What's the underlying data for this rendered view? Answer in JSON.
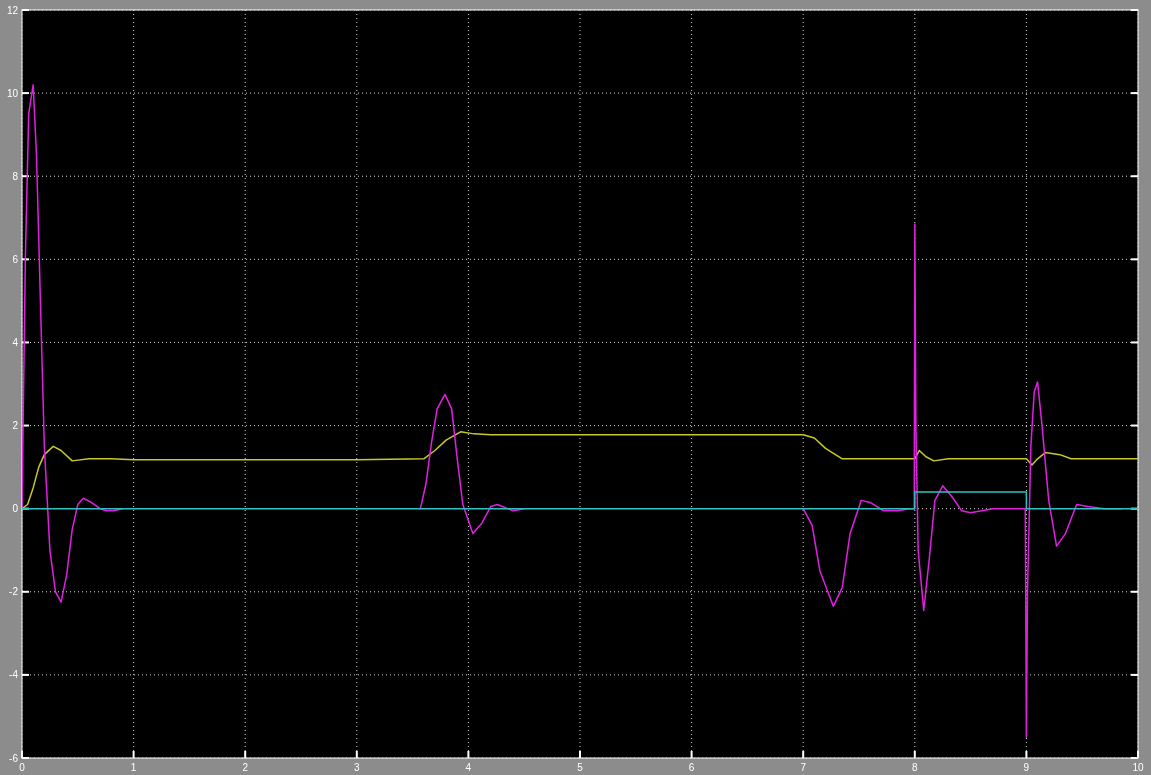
{
  "chart_data": {
    "type": "line",
    "xlim": [
      0,
      10
    ],
    "ylim": [
      -6,
      12
    ],
    "xticks": [
      0,
      1,
      2,
      3,
      4,
      5,
      6,
      7,
      8,
      9,
      10
    ],
    "yticks": [
      -6,
      -4,
      -2,
      0,
      2,
      4,
      6,
      8,
      10,
      12
    ],
    "grid": true,
    "line_style": "solid",
    "series": [
      {
        "color": "#c8c828",
        "x": [
          0,
          0.05,
          0.1,
          0.15,
          0.2,
          0.28,
          0.35,
          0.45,
          0.6,
          0.8,
          1.0,
          2.0,
          3.0,
          3.6,
          3.7,
          3.8,
          3.93,
          4.05,
          4.2,
          5.0,
          6.0,
          7.0,
          7.1,
          7.2,
          7.35,
          7.5,
          8.0,
          8.04,
          8.1,
          8.17,
          8.3,
          8.6,
          9.0,
          9.05,
          9.1,
          9.17,
          9.3,
          9.4,
          10.0
        ],
        "values": [
          0,
          0.1,
          0.5,
          1.0,
          1.3,
          1.5,
          1.4,
          1.15,
          1.2,
          1.2,
          1.18,
          1.18,
          1.18,
          1.2,
          1.4,
          1.65,
          1.85,
          1.8,
          1.78,
          1.78,
          1.78,
          1.78,
          1.7,
          1.45,
          1.2,
          1.2,
          1.2,
          1.4,
          1.25,
          1.15,
          1.2,
          1.2,
          1.2,
          1.05,
          1.2,
          1.35,
          1.3,
          1.2,
          1.2
        ]
      },
      {
        "color": "#e020e0",
        "x": [
          0,
          0.03,
          0.06,
          0.1,
          0.13,
          0.17,
          0.2,
          0.25,
          0.3,
          0.35,
          0.4,
          0.45,
          0.5,
          0.55,
          0.62,
          0.7,
          0.75,
          0.82,
          0.9,
          2.0,
          3.57,
          3.62,
          3.67,
          3.72,
          3.79,
          3.85,
          3.9,
          3.95,
          4.04,
          4.12,
          4.2,
          4.26,
          4.4,
          4.5,
          5.5,
          7.0,
          7.08,
          7.15,
          7.27,
          7.35,
          7.42,
          7.52,
          7.6,
          7.72,
          7.85,
          7.95,
          7.995,
          8.0,
          8.01,
          8.03,
          8.08,
          8.13,
          8.18,
          8.25,
          8.33,
          8.42,
          8.5,
          8.6,
          8.7,
          8.8,
          8.99,
          9.0,
          9.01,
          9.04,
          9.07,
          9.1,
          9.14,
          9.2,
          9.27,
          9.35,
          9.45,
          9.55,
          9.7,
          9.85
        ],
        "values": [
          0,
          6,
          9.5,
          10.2,
          8.5,
          4.5,
          1.5,
          -1.0,
          -2.0,
          -2.25,
          -1.6,
          -0.5,
          0.1,
          0.25,
          0.15,
          0,
          -0.05,
          -0.05,
          0,
          null,
          0,
          0.6,
          1.6,
          2.4,
          2.75,
          2.4,
          1.2,
          0.1,
          -0.6,
          -0.35,
          0.05,
          0.1,
          -0.05,
          0,
          null,
          0,
          -0.4,
          -1.5,
          -2.35,
          -1.9,
          -0.6,
          0.2,
          0.15,
          -0.05,
          -0.05,
          0,
          0,
          6.85,
          2.0,
          -1.0,
          -2.45,
          -1.2,
          0.2,
          0.55,
          0.3,
          -0.05,
          -0.1,
          -0.05,
          0,
          0,
          0,
          -5.5,
          -2.0,
          1.5,
          2.8,
          3.05,
          2.0,
          0.2,
          -0.9,
          -0.6,
          0.1,
          0.05,
          0,
          0
        ]
      },
      {
        "color": "#30c0c0",
        "x": [
          0,
          8,
          8,
          9,
          9,
          10
        ],
        "values": [
          0,
          0,
          0.4,
          0.4,
          0,
          0
        ]
      }
    ]
  }
}
